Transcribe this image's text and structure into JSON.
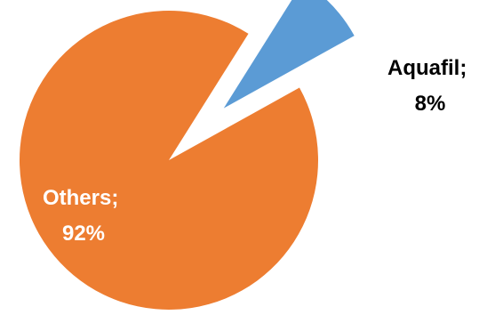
{
  "chart_data": {
    "type": "pie",
    "title": "",
    "categories": [
      "Aquafil",
      "Others"
    ],
    "values": [
      8,
      92
    ],
    "colors": [
      "#5B9BD5",
      "#ED7D31"
    ],
    "label_colors": [
      "#000000",
      "#ffffff"
    ],
    "exploded": [
      true,
      false
    ],
    "labels": [
      {
        "line1": "Aquafil;",
        "line2": "8%"
      },
      {
        "line1": "Others;",
        "line2": "92%"
      }
    ],
    "legend": "none"
  }
}
